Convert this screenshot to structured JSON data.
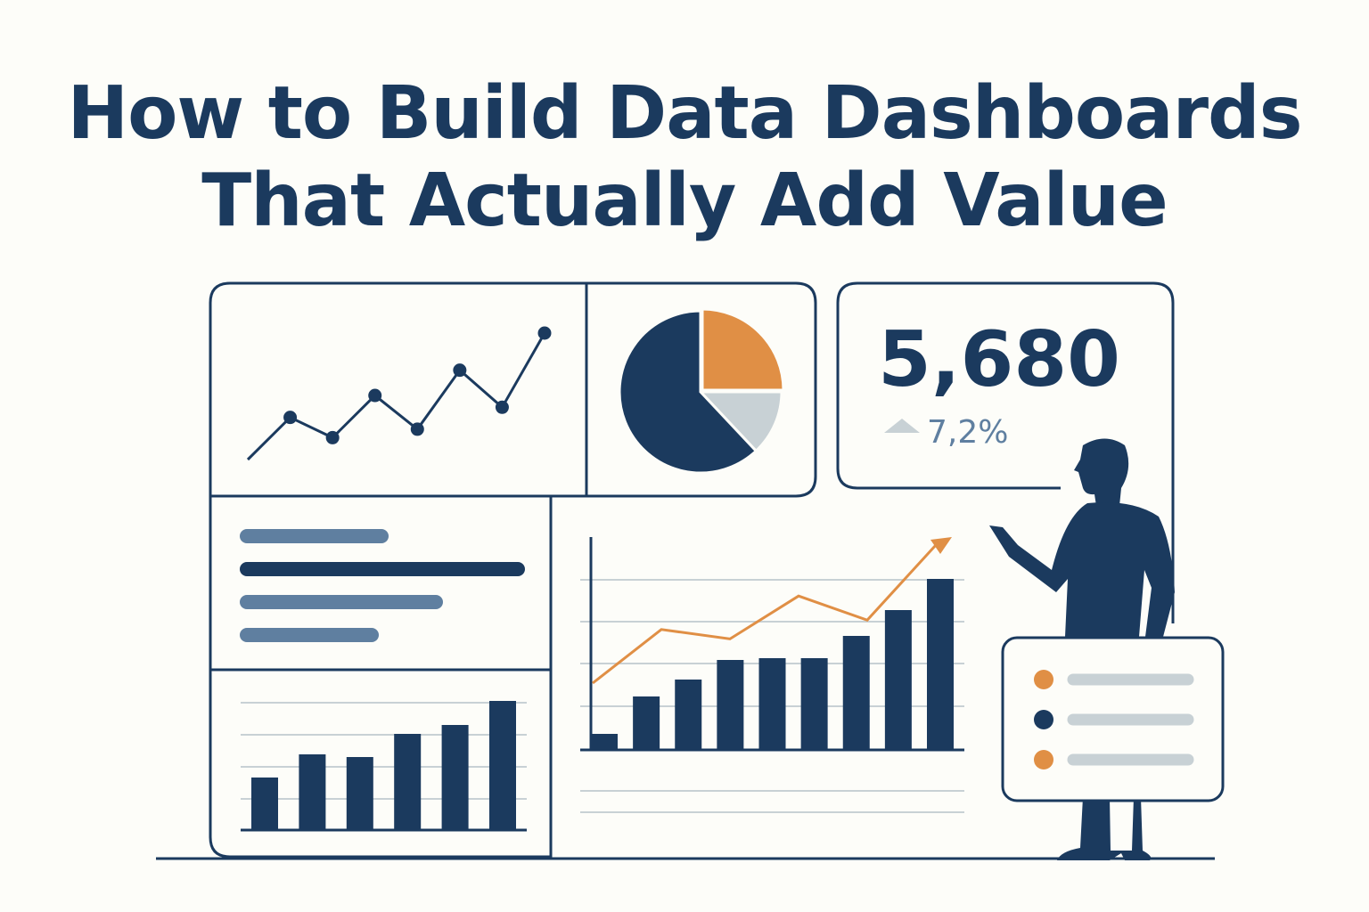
{
  "title": {
    "line1": "How to Build Data Dashboards",
    "line2": "That Actually Add Value"
  },
  "colors": {
    "navy": "#1b3a5e",
    "orange": "#e08f45",
    "gray": "#c8d1d5",
    "slate": "#5f7fa0",
    "background": "#fdfdf9"
  },
  "kpi": {
    "value": "5,680",
    "change": "7,2%",
    "change_icon": "triangle-up-icon"
  },
  "chart_data": [
    {
      "type": "line",
      "values": [
        10,
        35,
        23,
        48,
        28,
        63,
        41,
        85
      ]
    },
    {
      "type": "pie",
      "slices": [
        {
          "value": 25,
          "color": "orange"
        },
        {
          "value": 13,
          "color": "gray"
        },
        {
          "value": 62,
          "color": "navy"
        }
      ]
    },
    {
      "type": "bar",
      "values": [
        59,
        85,
        82,
        108,
        118,
        145
      ]
    },
    {
      "type": "bar",
      "values": [
        18,
        60,
        79,
        101,
        103,
        103,
        128,
        157,
        192
      ],
      "trend": [
        15,
        55,
        48,
        80,
        62,
        118
      ]
    }
  ],
  "legend_items": [
    {
      "color": "orange"
    },
    {
      "color": "navy"
    },
    {
      "color": "orange"
    }
  ]
}
